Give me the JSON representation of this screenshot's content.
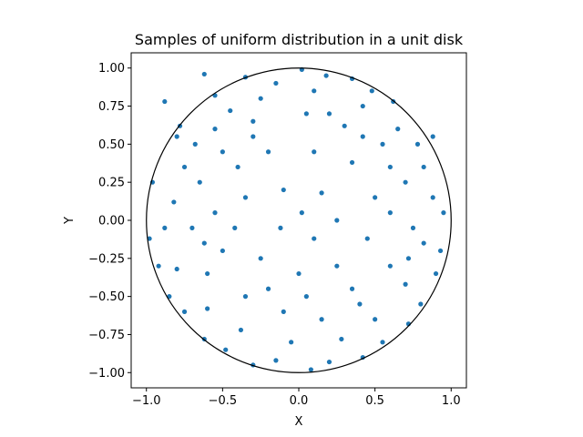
{
  "chart_data": {
    "type": "scatter",
    "title": "Samples of uniform distribution in a unit disk",
    "xlabel": "X",
    "ylabel": "Y",
    "xlim": [
      -1.1,
      1.1
    ],
    "ylim": [
      -1.1,
      1.1
    ],
    "xticks": [
      -1.0,
      -0.5,
      0.0,
      0.5,
      1.0
    ],
    "yticks": [
      -1.0,
      -0.75,
      -0.5,
      -0.25,
      0.0,
      0.25,
      0.5,
      0.75,
      1.0
    ],
    "xtick_labels": [
      "−1.0",
      "−0.5",
      "0.0",
      "0.5",
      "1.0"
    ],
    "ytick_labels": [
      "−1.00",
      "−0.75",
      "−0.50",
      "−0.25",
      "0.00",
      "0.25",
      "0.50",
      "0.75",
      "1.00"
    ],
    "grid": false,
    "point_color": "#1f77b4",
    "circle": {
      "center": [
        0,
        0
      ],
      "radius": 1,
      "color": "#000000"
    },
    "points": [
      [
        -0.88,
        0.78
      ],
      [
        -0.62,
        0.96
      ],
      [
        -0.35,
        0.94
      ],
      [
        0.02,
        0.99
      ],
      [
        0.35,
        0.93
      ],
      [
        0.62,
        0.78
      ],
      [
        0.88,
        0.55
      ],
      [
        0.95,
        0.05
      ],
      [
        0.9,
        -0.35
      ],
      [
        0.72,
        -0.68
      ],
      [
        0.42,
        -0.9
      ],
      [
        0.08,
        -0.98
      ],
      [
        -0.3,
        -0.95
      ],
      [
        -0.62,
        -0.78
      ],
      [
        -0.85,
        -0.5
      ],
      [
        -0.98,
        -0.12
      ],
      [
        -0.96,
        0.25
      ],
      [
        -0.78,
        0.62
      ],
      [
        -0.8,
        0.55
      ],
      [
        -0.55,
        0.82
      ],
      [
        -0.15,
        0.9
      ],
      [
        0.18,
        0.95
      ],
      [
        0.48,
        0.85
      ],
      [
        0.78,
        0.5
      ],
      [
        0.93,
        -0.2
      ],
      [
        0.8,
        -0.55
      ],
      [
        0.55,
        -0.8
      ],
      [
        0.2,
        -0.93
      ],
      [
        -0.15,
        -0.92
      ],
      [
        -0.48,
        -0.85
      ],
      [
        -0.75,
        -0.6
      ],
      [
        -0.92,
        -0.3
      ],
      [
        -0.55,
        0.6
      ],
      [
        -0.3,
        0.65
      ],
      [
        0.05,
        0.7
      ],
      [
        0.3,
        0.62
      ],
      [
        0.55,
        0.5
      ],
      [
        0.7,
        0.25
      ],
      [
        0.75,
        -0.05
      ],
      [
        0.6,
        -0.3
      ],
      [
        0.4,
        -0.55
      ],
      [
        0.15,
        -0.65
      ],
      [
        -0.1,
        -0.6
      ],
      [
        -0.35,
        -0.5
      ],
      [
        -0.6,
        -0.35
      ],
      [
        -0.7,
        -0.05
      ],
      [
        -0.65,
        0.25
      ],
      [
        -0.4,
        0.35
      ],
      [
        -0.2,
        0.45
      ],
      [
        0.1,
        0.45
      ],
      [
        0.35,
        0.38
      ],
      [
        0.5,
        0.15
      ],
      [
        0.45,
        -0.12
      ],
      [
        0.25,
        -0.3
      ],
      [
        0.0,
        -0.35
      ],
      [
        -0.25,
        -0.25
      ],
      [
        -0.42,
        -0.05
      ],
      [
        -0.35,
        0.15
      ],
      [
        -0.1,
        0.2
      ],
      [
        0.15,
        0.18
      ],
      [
        0.25,
        0.0
      ],
      [
        0.1,
        -0.12
      ],
      [
        -0.12,
        -0.05
      ],
      [
        0.02,
        0.05
      ],
      [
        -0.82,
        0.12
      ],
      [
        -0.75,
        0.35
      ],
      [
        -0.68,
        0.5
      ],
      [
        -0.45,
        0.72
      ],
      [
        -0.25,
        0.8
      ],
      [
        0.1,
        0.85
      ],
      [
        0.42,
        0.75
      ],
      [
        0.65,
        0.6
      ],
      [
        0.82,
        0.35
      ],
      [
        0.88,
        0.15
      ],
      [
        0.82,
        -0.15
      ],
      [
        0.7,
        -0.42
      ],
      [
        0.5,
        -0.65
      ],
      [
        0.28,
        -0.78
      ],
      [
        -0.05,
        -0.8
      ],
      [
        -0.38,
        -0.72
      ],
      [
        -0.6,
        -0.58
      ],
      [
        -0.8,
        -0.32
      ],
      [
        -0.88,
        -0.05
      ],
      [
        -0.5,
        -0.2
      ],
      [
        -0.55,
        0.05
      ],
      [
        -0.5,
        0.45
      ],
      [
        0.2,
        0.7
      ],
      [
        0.6,
        0.35
      ],
      [
        0.6,
        0.05
      ],
      [
        0.35,
        -0.45
      ],
      [
        -0.2,
        -0.45
      ],
      [
        -0.3,
        0.55
      ],
      [
        0.42,
        0.55
      ],
      [
        -0.62,
        -0.15
      ],
      [
        0.72,
        -0.25
      ],
      [
        0.05,
        -0.5
      ]
    ]
  }
}
